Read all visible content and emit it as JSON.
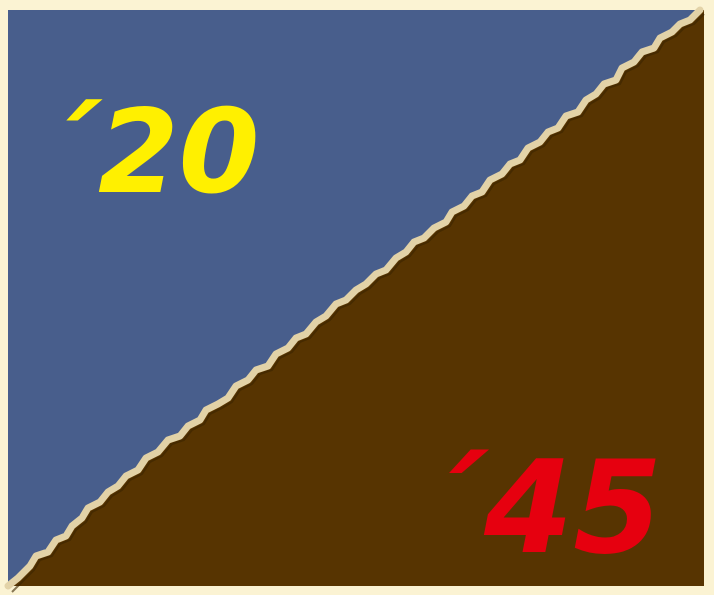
{
  "labels": {
    "top_year": "´20",
    "bottom_year": "´45"
  },
  "colors": {
    "page_background": "#fbf3d3",
    "upper_field": "#485e8c",
    "lower_field": "#573401",
    "torn_edge": "#c9b48a",
    "top_year_text": "#fff000",
    "bottom_year_text": "#e6000f"
  }
}
